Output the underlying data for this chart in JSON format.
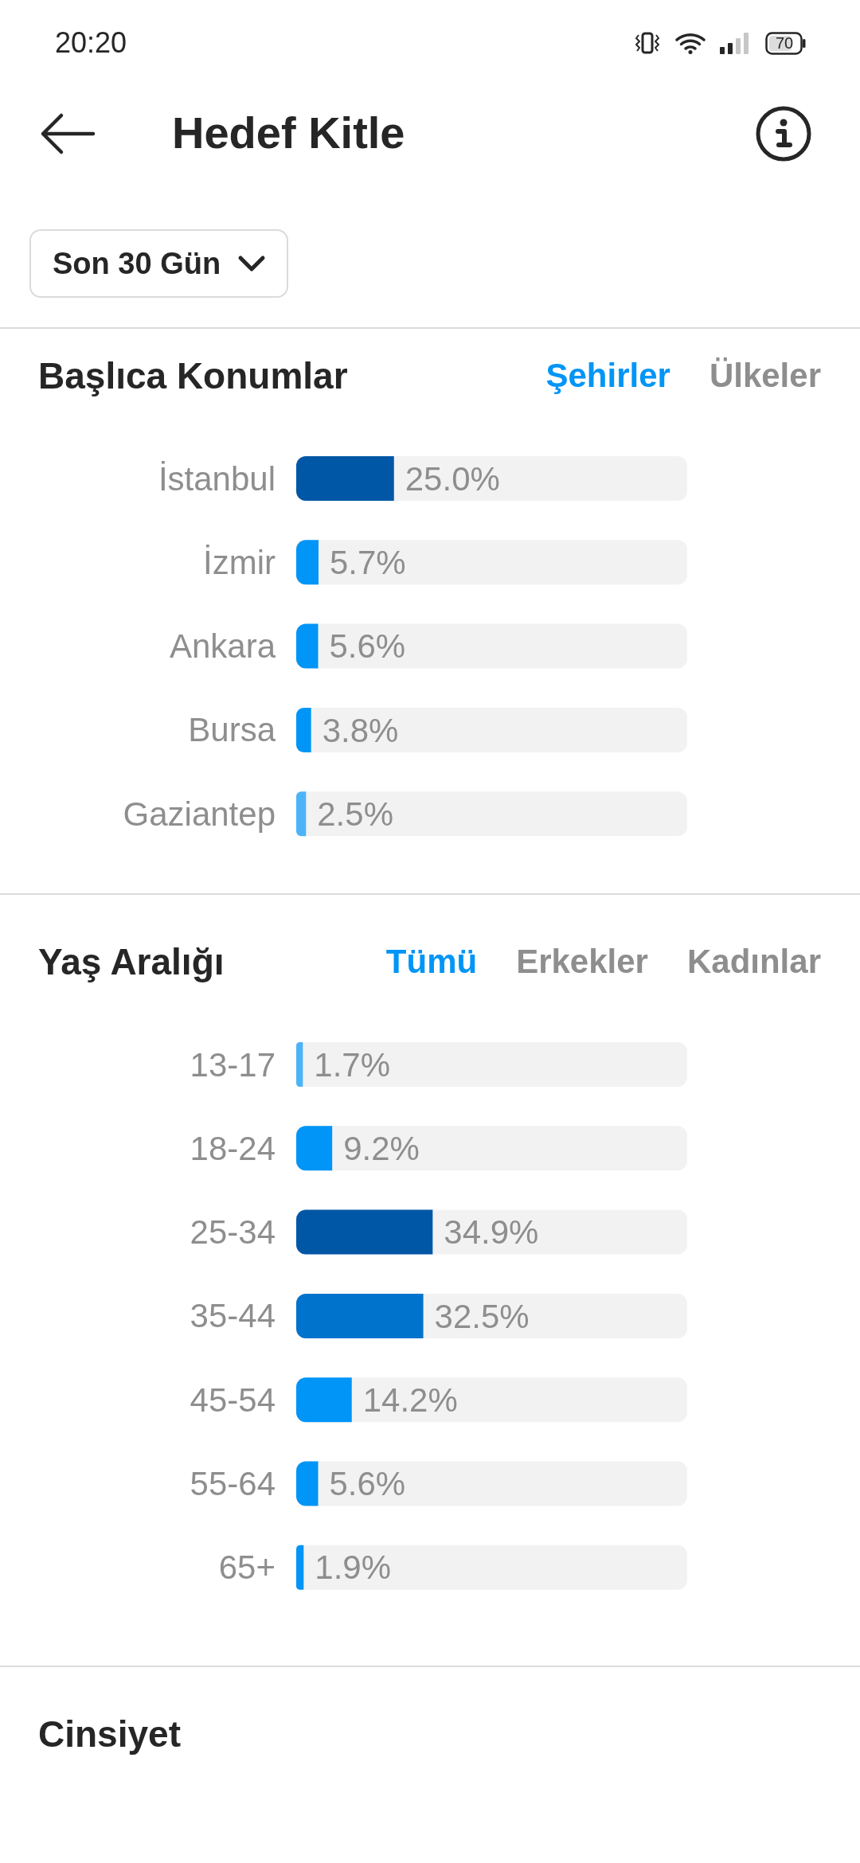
{
  "chart_data": [
    {
      "type": "other",
      "title": "Hedef Kitle",
      "annotations": [
        "20:20",
        "70",
        "Son 30 Gün"
      ]
    },
    {
      "type": "bar",
      "orientation": "horizontal",
      "title": "Başlıca Konumlar",
      "annotations": [
        "Şehirler",
        "Ülkeler"
      ],
      "categories": [
        "İstanbul",
        "İzmir",
        "Ankara",
        "Bursa",
        "Gaziantep"
      ],
      "values": [
        25.0,
        5.7,
        5.6,
        3.8,
        2.5
      ],
      "colors": [
        "#0057a6",
        "#0095f6",
        "#0095f6",
        "#0095f6",
        "#4db3f7"
      ],
      "value_labels": [
        "25.0%",
        "5.7%",
        "5.6%",
        "3.8%",
        "2.5%"
      ],
      "xlim": [
        0,
        100
      ],
      "tick_labels": "y"
    },
    {
      "type": "bar",
      "orientation": "horizontal",
      "title": "Yaş Aralığı",
      "annotations": [
        "Tümü",
        "Erkekler",
        "Kadınlar"
      ],
      "categories": [
        "13-17",
        "18-24",
        "25-34",
        "35-44",
        "45-54",
        "55-64",
        "65+"
      ],
      "values": [
        1.7,
        9.2,
        34.9,
        32.5,
        14.2,
        5.6,
        1.9
      ],
      "colors": [
        "#4db3f7",
        "#0095f6",
        "#0057a6",
        "#0073cc",
        "#0095f6",
        "#0095f6",
        "#0095f6"
      ],
      "value_labels": [
        "1.7%",
        "9.2%",
        "34.9%",
        "32.5%",
        "14.2%",
        "5.6%",
        "1.9%"
      ],
      "xlim": [
        0,
        100
      ],
      "tick_labels": "y"
    },
    {
      "type": "other",
      "title": "Cinsiyet"
    }
  ]
}
